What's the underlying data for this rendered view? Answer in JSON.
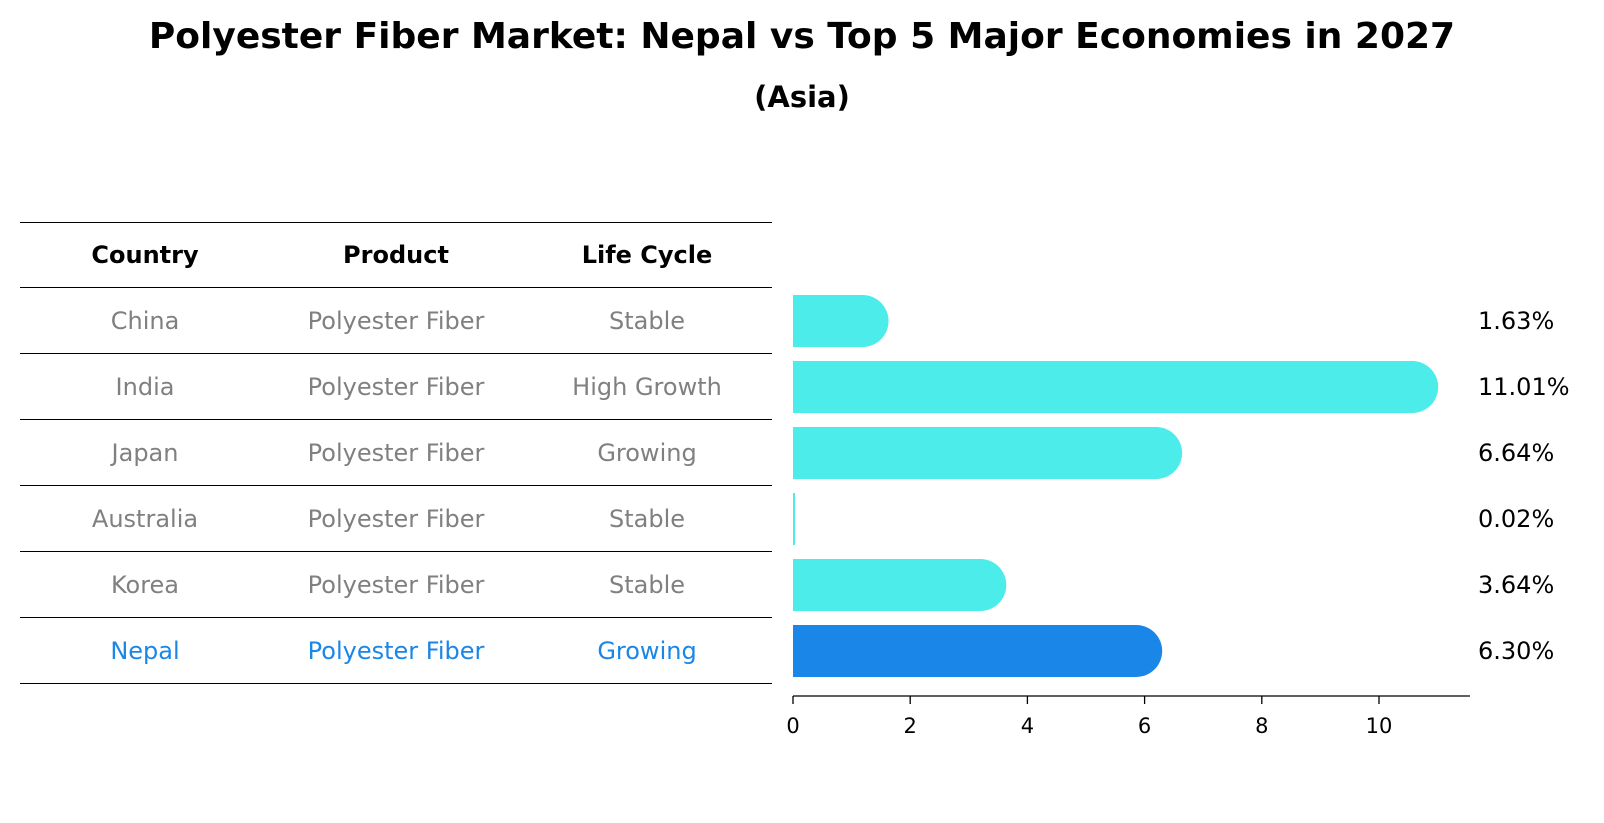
{
  "title": "Polyester Fiber Market: Nepal vs Top 5 Major Economies in 2027",
  "subtitle": "(Asia)",
  "table": {
    "headers": [
      "Country",
      "Product",
      "Life Cycle"
    ],
    "rows": [
      {
        "country": "China",
        "product": "Polyester Fiber",
        "life_cycle": "Stable"
      },
      {
        "country": "India",
        "product": "Polyester Fiber",
        "life_cycle": "High Growth"
      },
      {
        "country": "Japan",
        "product": "Polyester Fiber",
        "life_cycle": "Growing"
      },
      {
        "country": "Australia",
        "product": "Polyester Fiber",
        "life_cycle": "Stable"
      },
      {
        "country": "Korea",
        "product": "Polyester Fiber",
        "life_cycle": "Stable"
      },
      {
        "country": "Nepal",
        "product": "Polyester Fiber",
        "life_cycle": "Growing"
      }
    ]
  },
  "colors": {
    "bar": "#4cecea",
    "highlight": "#1a86e8",
    "muted_text": "#808080"
  },
  "chart_data": {
    "type": "bar",
    "orientation": "horizontal",
    "categories": [
      "China",
      "India",
      "Japan",
      "Australia",
      "Korea",
      "Nepal"
    ],
    "values": [
      1.63,
      11.01,
      6.64,
      0.02,
      3.64,
      6.3
    ],
    "value_labels": [
      "1.63%",
      "11.01%",
      "6.64%",
      "0.02%",
      "3.64%",
      "6.30%"
    ],
    "highlight_category": "Nepal",
    "xlim": [
      0,
      11.5
    ],
    "xticks": [
      0,
      2,
      4,
      6,
      8,
      10
    ],
    "xlabel": "",
    "ylabel": "",
    "title": "Polyester Fiber Market: Nepal vs Top 5 Major Economies in 2027",
    "subtitle": "(Asia)"
  }
}
